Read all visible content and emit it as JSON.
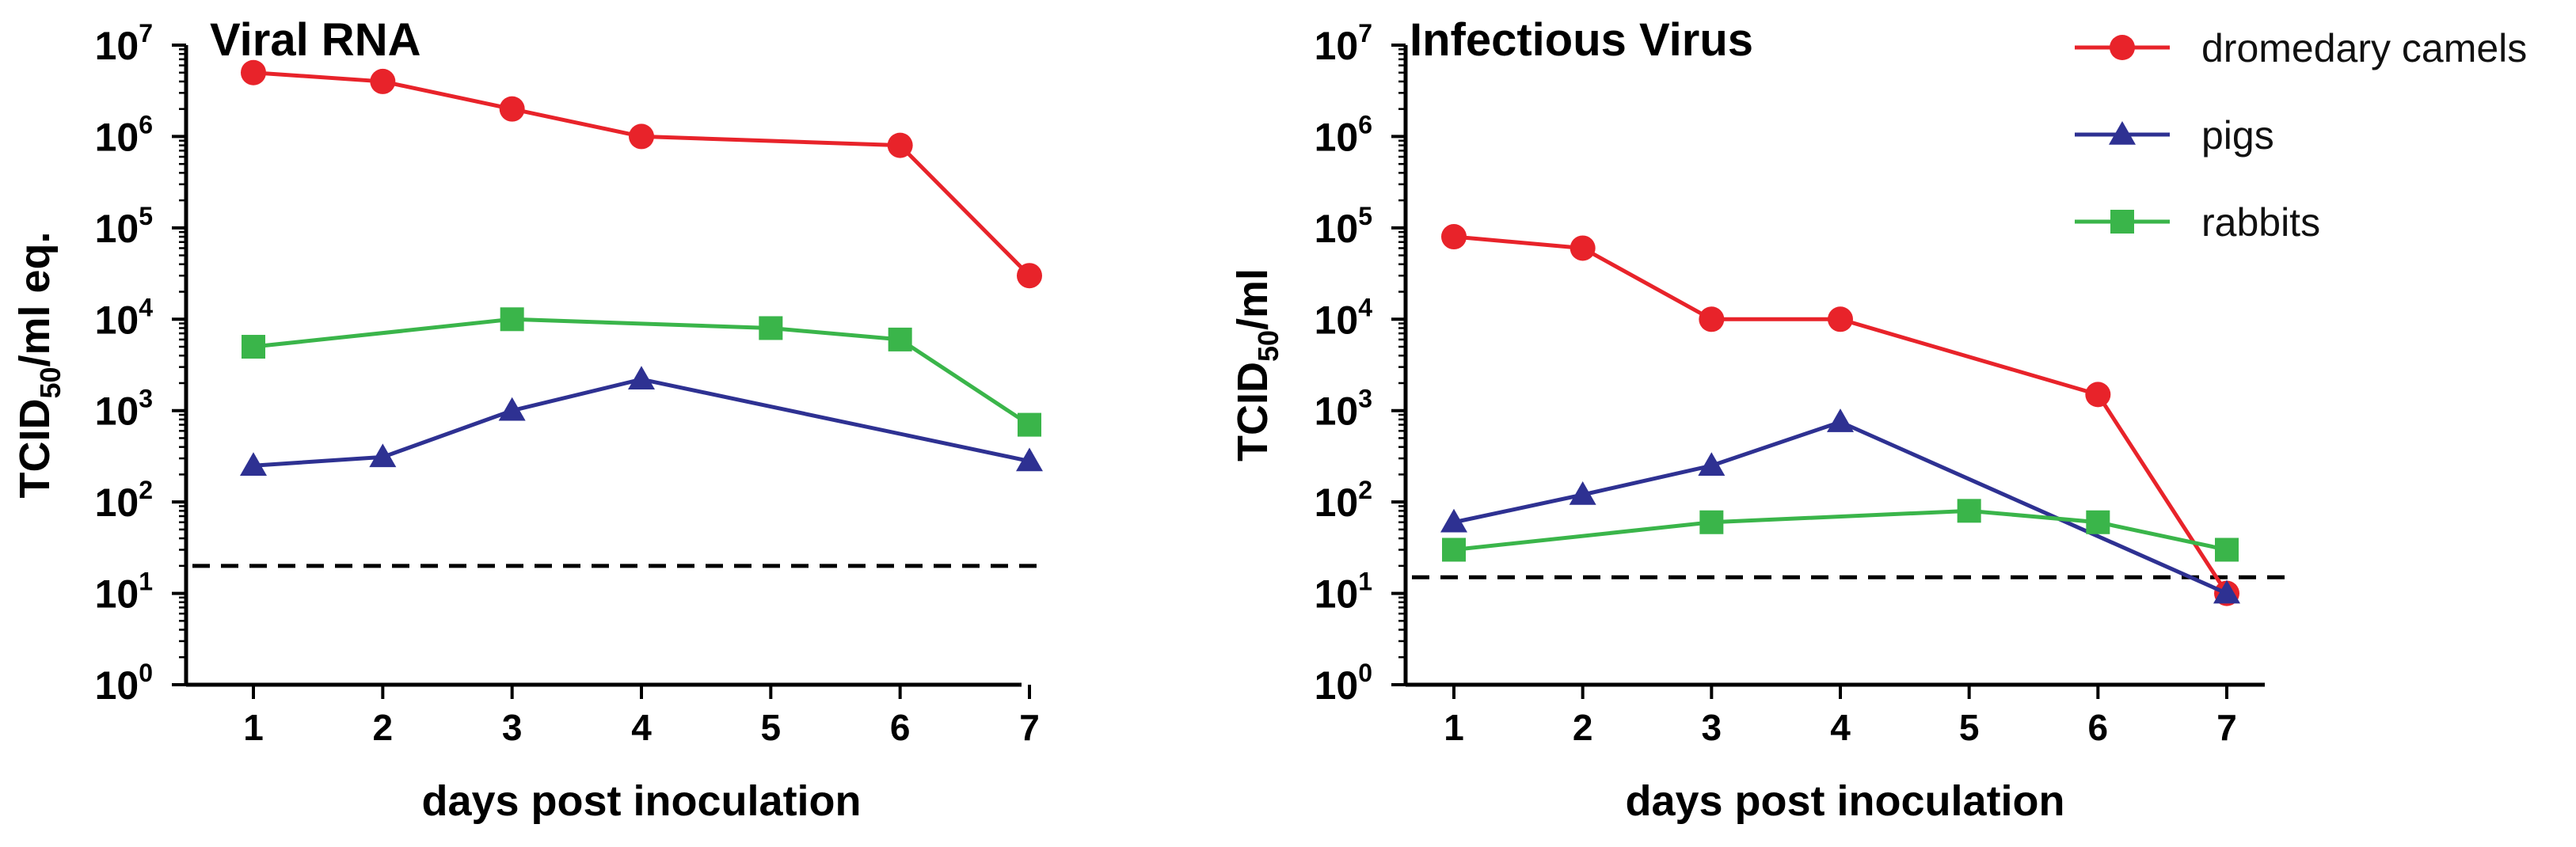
{
  "chart_data": [
    {
      "type": "line",
      "title": "Viral RNA",
      "ylabel_main": "TCID",
      "ylabel_sub": "50",
      "ylabel_rest": "/ml eq.",
      "xlabel": "days post inoculation",
      "y_scale": "log",
      "ylim": [
        1,
        10000000
      ],
      "y_ticks": [
        {
          "base": "10",
          "exp": "0"
        },
        {
          "base": "10",
          "exp": "1"
        },
        {
          "base": "10",
          "exp": "2"
        },
        {
          "base": "10",
          "exp": "3"
        },
        {
          "base": "10",
          "exp": "4"
        },
        {
          "base": "10",
          "exp": "5"
        },
        {
          "base": "10",
          "exp": "6"
        },
        {
          "base": "10",
          "exp": "7"
        }
      ],
      "categories": [
        "1",
        "2",
        "3",
        "4",
        "5",
        "6",
        "7"
      ],
      "detection_limit": 20,
      "series": [
        {
          "name": "dromedary camels",
          "color": "#e8232a",
          "marker": "circle",
          "x": [
            1,
            2,
            3,
            4,
            6,
            7
          ],
          "y": [
            5000000,
            4000000,
            2000000,
            1000000,
            800000,
            30000
          ]
        },
        {
          "name": "pigs",
          "color": "#2e3192",
          "marker": "triangle",
          "x": [
            1,
            2,
            3,
            4,
            7
          ],
          "y": [
            250,
            310,
            1000,
            2200,
            280
          ]
        },
        {
          "name": "rabbits",
          "color": "#3ab54a",
          "marker": "square",
          "x": [
            1,
            3,
            5,
            6,
            7
          ],
          "y": [
            5000,
            10000,
            8000,
            6000,
            700
          ]
        }
      ]
    },
    {
      "type": "line",
      "title": "Infectious Virus",
      "ylabel_main": "TCID",
      "ylabel_sub": "50",
      "ylabel_rest": "/ml",
      "xlabel": "days post inoculation",
      "y_scale": "log",
      "ylim": [
        1,
        10000000
      ],
      "y_ticks": [
        {
          "base": "10",
          "exp": "0"
        },
        {
          "base": "10",
          "exp": "1"
        },
        {
          "base": "10",
          "exp": "2"
        },
        {
          "base": "10",
          "exp": "3"
        },
        {
          "base": "10",
          "exp": "4"
        },
        {
          "base": "10",
          "exp": "5"
        },
        {
          "base": "10",
          "exp": "6"
        },
        {
          "base": "10",
          "exp": "7"
        }
      ],
      "categories": [
        "1",
        "2",
        "3",
        "4",
        "5",
        "6",
        "7"
      ],
      "detection_limit": 15,
      "series": [
        {
          "name": "dromedary camels",
          "color": "#e8232a",
          "marker": "circle",
          "x": [
            1,
            2,
            3,
            4,
            6,
            7
          ],
          "y": [
            80000,
            60000,
            10000,
            10000,
            1500,
            10
          ]
        },
        {
          "name": "pigs",
          "color": "#2e3192",
          "marker": "triangle",
          "x": [
            1,
            2,
            3,
            4,
            7
          ],
          "y": [
            60,
            120,
            250,
            750,
            10
          ]
        },
        {
          "name": "rabbits",
          "color": "#3ab54a",
          "marker": "square",
          "x": [
            1,
            3,
            5,
            6,
            7
          ],
          "y": [
            30,
            60,
            80,
            60,
            30
          ]
        }
      ]
    }
  ],
  "legend": [
    {
      "label": "dromedary camels",
      "color": "#e8232a",
      "marker": "circle"
    },
    {
      "label": "pigs",
      "color": "#2e3192",
      "marker": "triangle"
    },
    {
      "label": "rabbits",
      "color": "#3ab54a",
      "marker": "square"
    }
  ]
}
